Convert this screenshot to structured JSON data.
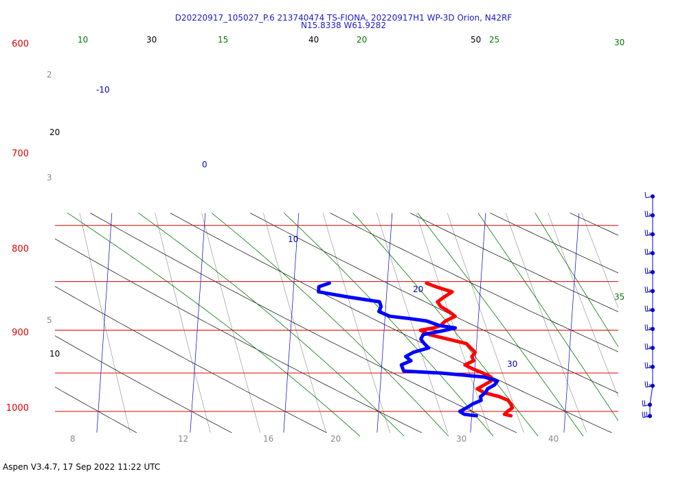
{
  "header": {
    "title_line1": "D20220917_105027_P.6 213740474 TS-FIONA, 20220917H1 WP-3D Orion, N42RF",
    "title_line2": "N15.8338 W61.9282"
  },
  "footer": {
    "software": "Aspen V3.4.7, 17 Sep 2022  11:22 UTC"
  },
  "colors": {
    "isobar": "#dd0000",
    "isotherm": "#0000cc",
    "dry_adiabat": "#000000",
    "moist_adiabat": "#007700",
    "mixing_ratio": "#888888",
    "temperature": "#ff0000",
    "dewpoint": "#0000ff",
    "wind": "#0000cc"
  },
  "chart_data": {
    "type": "skew-t log-p sounding",
    "pressure_range_hPa": [
      1050,
      600
    ],
    "pressure_ticks": [
      "600",
      "700",
      "800",
      "900",
      "1000"
    ],
    "isotherm_labels": [
      "-10",
      "0",
      "10",
      "20",
      "30"
    ],
    "dry_adiabat_labels": [
      "30",
      "40",
      "50",
      "20",
      "10"
    ],
    "moist_adiabat_labels": [
      "10",
      "15",
      "20",
      "25",
      "30",
      "35"
    ],
    "mixing_ratio_labels": [
      "2",
      "3",
      "5",
      "8",
      "12",
      "16",
      "20",
      "30",
      "40"
    ],
    "series": [
      {
        "name": "temperature",
        "pressure": [
          1012,
          1008,
          1000,
          990,
          980,
          970,
          960,
          950,
          940,
          930,
          920,
          910,
          900,
          890,
          880,
          870,
          860,
          850,
          840,
          830,
          820,
          810,
          800,
          795,
          790,
          780,
          770,
          760,
          750,
          740,
          730,
          720,
          710,
          703
        ],
        "temperature": [
          24.2,
          23.5,
          23.8,
          24.3,
          24.1,
          23.8,
          22.8,
          21.2,
          20.4,
          21.1,
          21.8,
          21.8,
          20.9,
          19.8,
          18.9,
          19.8,
          19.6,
          19.9,
          19.4,
          18.9,
          16.9,
          14.9,
          13.9,
          15.3,
          16.0,
          16.5,
          17.5,
          16.8,
          15.9,
          15.5,
          16.2,
          17.0,
          15.2,
          14.2
        ]
      },
      {
        "name": "dewpoint",
        "pressure": [
          1012,
          1008,
          1000,
          990,
          980,
          970,
          960,
          950,
          940,
          930,
          920,
          910,
          900,
          895,
          890,
          880,
          870,
          860,
          850,
          840,
          830,
          820,
          810,
          800,
          795,
          790,
          780,
          775,
          770,
          760,
          750,
          740,
          730,
          720,
          710,
          703
        ],
        "dewpoint": [
          20.5,
          19.2,
          18.7,
          19.4,
          20.0,
          20.9,
          20.8,
          21.3,
          21.5,
          22.2,
          22.5,
          21.1,
          16.5,
          12.4,
          12.3,
          12.1,
          13.1,
          12.5,
          13.3,
          14.9,
          14.4,
          14.0,
          14.2,
          16.6,
          17.6,
          15.9,
          14.5,
          12.7,
          10.5,
          9.3,
          9.5,
          9.3,
          5.8,
          2.7,
          2.7,
          3.8
        ]
      }
    ],
    "wind_barbs": {
      "pressure": [
        1010,
        995,
        970,
        945,
        920,
        895,
        870,
        845,
        820,
        795,
        770,
        745,
        720
      ],
      "speed_kt": [
        25,
        20,
        15,
        15,
        15,
        15,
        15,
        15,
        15,
        15,
        15,
        15,
        10
      ]
    }
  }
}
